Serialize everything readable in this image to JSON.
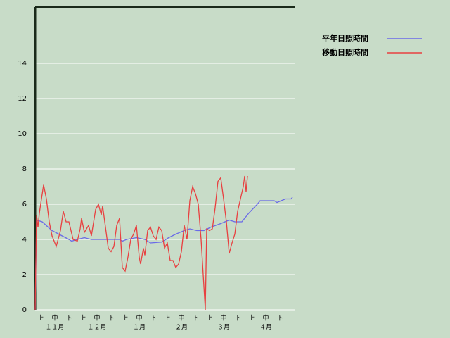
{
  "chart_data": {
    "type": "line",
    "xlim": [
      0,
      185
    ],
    "xticks": [
      {
        "value": 4,
        "label": "上"
      },
      {
        "value": 14,
        "label": "中"
      },
      {
        "value": 24,
        "label": "下"
      },
      {
        "value": 34,
        "label": "上"
      },
      {
        "value": 44,
        "label": "中"
      },
      {
        "value": 54,
        "label": "下"
      },
      {
        "value": 64,
        "label": "上"
      },
      {
        "value": 74,
        "label": "中"
      },
      {
        "value": 84,
        "label": "下"
      },
      {
        "value": 94,
        "label": "上"
      },
      {
        "value": 104,
        "label": "中"
      },
      {
        "value": 114,
        "label": "下"
      },
      {
        "value": 124,
        "label": "上"
      },
      {
        "value": 134,
        "label": "中"
      },
      {
        "value": 144,
        "label": "下"
      },
      {
        "value": 154,
        "label": "上"
      },
      {
        "value": 164,
        "label": "中"
      },
      {
        "value": 174,
        "label": "下"
      }
    ],
    "month_labels": [
      {
        "value": 14,
        "label": "１１月"
      },
      {
        "value": 44,
        "label": "１２月"
      },
      {
        "value": 74,
        "label": "１月"
      },
      {
        "value": 104,
        "label": "２月"
      },
      {
        "value": 134,
        "label": "３月"
      },
      {
        "value": 164,
        "label": "４月"
      }
    ],
    "ylim": [
      0,
      17.2
    ],
    "yticks": [
      0,
      2,
      4,
      6,
      8,
      10,
      12,
      14
    ],
    "grid": true,
    "series": [
      {
        "name": "平年日照時間",
        "color": "#6a6ae8",
        "x": [
          0,
          1,
          5,
          12,
          24,
          26,
          30,
          35,
          40,
          60,
          62,
          65,
          72,
          78,
          82,
          90,
          95,
          100,
          106,
          110,
          115,
          120,
          125,
          132,
          138,
          142,
          147,
          152,
          158,
          160,
          170,
          172,
          175,
          178,
          182,
          183
        ],
        "values": [
          0,
          5.1,
          5.0,
          4.5,
          4.0,
          3.9,
          4.0,
          4.1,
          4.0,
          4.0,
          3.9,
          4.0,
          4.1,
          4.0,
          3.8,
          3.85,
          4.1,
          4.3,
          4.5,
          4.6,
          4.5,
          4.5,
          4.7,
          4.9,
          5.1,
          5.0,
          5.0,
          5.5,
          6.0,
          6.2,
          6.2,
          6.1,
          6.2,
          6.3,
          6.3,
          6.4
        ]
      },
      {
        "name": "移動日照時間",
        "color": "#e84040",
        "x": [
          0,
          1,
          2,
          3,
          6,
          8,
          10,
          12,
          15,
          18,
          20,
          22,
          24,
          27,
          30,
          32,
          33,
          35,
          38,
          40,
          43,
          45,
          47,
          48,
          50,
          52,
          54,
          56,
          58,
          60,
          62,
          64,
          66,
          68,
          70,
          72,
          74,
          75,
          77,
          78,
          80,
          82,
          84,
          86,
          88,
          90,
          92,
          94,
          96,
          98,
          100,
          102,
          104,
          106,
          108,
          110,
          112,
          114,
          116,
          118,
          121,
          122,
          124,
          126,
          128,
          130,
          132,
          134,
          136,
          138,
          140,
          142,
          144,
          146,
          148,
          149,
          150,
          151
        ],
        "values": [
          0,
          5.4,
          4.7,
          5.5,
          7.1,
          6.3,
          5.0,
          4.2,
          3.6,
          4.5,
          5.6,
          5.0,
          5.0,
          4.0,
          3.9,
          4.6,
          5.2,
          4.4,
          4.8,
          4.2,
          5.7,
          6.0,
          5.4,
          5.9,
          4.7,
          3.5,
          3.3,
          3.6,
          4.8,
          5.2,
          2.4,
          2.2,
          3.0,
          4.0,
          4.3,
          4.8,
          3.0,
          2.6,
          3.5,
          3.1,
          4.5,
          4.7,
          4.2,
          4.0,
          4.7,
          4.5,
          3.5,
          3.8,
          2.8,
          2.8,
          2.4,
          2.6,
          3.3,
          4.8,
          4.0,
          6.2,
          7.0,
          6.6,
          6.0,
          4.0,
          0,
          4.6,
          4.5,
          4.6,
          5.8,
          7.3,
          7.5,
          6.3,
          5.0,
          3.2,
          3.8,
          4.3,
          5.6,
          6.3,
          7.0,
          7.6,
          6.7,
          7.6
        ]
      }
    ]
  }
}
